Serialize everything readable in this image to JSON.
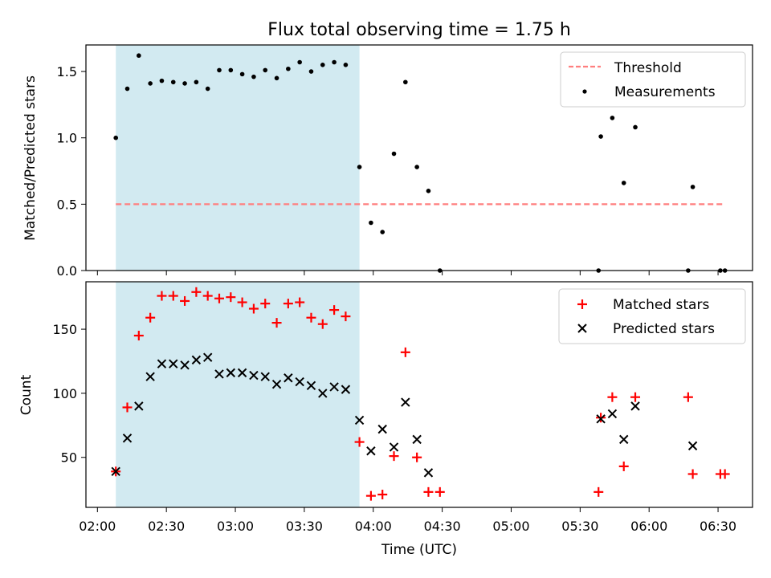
{
  "chart_data": {
    "title": "Flux total observing time = 1.75 h",
    "xlabel": "Time (UTC)",
    "x_ticks": [
      "02:00",
      "02:30",
      "03:00",
      "03:30",
      "04:00",
      "04:30",
      "05:00",
      "05:30",
      "06:00",
      "06:30"
    ],
    "xlim": [
      "01:55",
      "06:45"
    ],
    "highlight_span": [
      "02:08",
      "03:54"
    ],
    "colors": {
      "highlight": "#add8e6",
      "threshold": "#ff7f7f",
      "measurements": "#000000",
      "matched": "#ff0000",
      "predicted": "#000000"
    },
    "panels": [
      {
        "type": "scatter",
        "ylabel": "Matched/Predicted stars",
        "ylim": [
          0,
          1.7
        ],
        "y_ticks": [
          "0.0",
          "0.5",
          "1.0",
          "1.5"
        ],
        "legend_position": "top-right",
        "threshold": {
          "name": "Threshold",
          "value": 0.5,
          "x_range": [
            "02:08",
            "06:33"
          ]
        },
        "series": [
          {
            "name": "Measurements",
            "x": [
              "02:08",
              "02:13",
              "02:18",
              "02:23",
              "02:28",
              "02:33",
              "02:38",
              "02:43",
              "02:48",
              "02:53",
              "02:58",
              "03:03",
              "03:08",
              "03:13",
              "03:18",
              "03:23",
              "03:28",
              "03:33",
              "03:38",
              "03:43",
              "03:48",
              "03:54",
              "03:59",
              "04:04",
              "04:09",
              "04:14",
              "04:19",
              "04:24",
              "04:29",
              "05:38",
              "05:39",
              "05:44",
              "05:49",
              "05:54",
              "06:17",
              "06:19",
              "06:31",
              "06:33"
            ],
            "y": [
              1.0,
              1.37,
              1.62,
              1.41,
              1.43,
              1.42,
              1.41,
              1.42,
              1.37,
              1.51,
              1.51,
              1.48,
              1.46,
              1.51,
              1.45,
              1.52,
              1.57,
              1.5,
              1.55,
              1.57,
              1.55,
              0.78,
              0.36,
              0.29,
              0.88,
              1.42,
              0.78,
              0.6,
              0.0,
              0.0,
              1.01,
              1.15,
              0.66,
              1.08,
              0.0,
              0.63,
              0.0,
              0.0
            ]
          }
        ]
      },
      {
        "type": "scatter",
        "ylabel": "Count",
        "ylim": [
          11,
          187
        ],
        "y_ticks": [
          "50",
          "100",
          "150"
        ],
        "legend_position": "top-right",
        "series": [
          {
            "name": "Matched stars",
            "marker": "+",
            "x": [
              "02:08",
              "02:13",
              "02:18",
              "02:23",
              "02:28",
              "02:33",
              "02:38",
              "02:43",
              "02:48",
              "02:53",
              "02:58",
              "03:03",
              "03:08",
              "03:13",
              "03:18",
              "03:23",
              "03:28",
              "03:33",
              "03:38",
              "03:43",
              "03:48",
              "03:54",
              "03:59",
              "04:04",
              "04:09",
              "04:14",
              "04:19",
              "04:24",
              "04:29",
              "05:38",
              "05:39",
              "05:44",
              "05:49",
              "05:54",
              "06:17",
              "06:19",
              "06:31",
              "06:33"
            ],
            "y": [
              39,
              89,
              145,
              159,
              176,
              176,
              172,
              179,
              176,
              174,
              175,
              171,
              166,
              170,
              155,
              170,
              171,
              159,
              154,
              165,
              160,
              62,
              20,
              21,
              51,
              132,
              50,
              23,
              23,
              23,
              81,
              97,
              43,
              97,
              97,
              37,
              37,
              37
            ]
          },
          {
            "name": "Predicted stars",
            "marker": "x",
            "x": [
              "02:08",
              "02:13",
              "02:18",
              "02:23",
              "02:28",
              "02:33",
              "02:38",
              "02:43",
              "02:48",
              "02:53",
              "02:58",
              "03:03",
              "03:08",
              "03:13",
              "03:18",
              "03:23",
              "03:28",
              "03:33",
              "03:38",
              "03:43",
              "03:48",
              "03:54",
              "03:59",
              "04:04",
              "04:09",
              "04:14",
              "04:19",
              "04:24",
              "05:39",
              "05:44",
              "05:49",
              "05:54",
              "06:19"
            ],
            "y": [
              39,
              65,
              90,
              113,
              123,
              123,
              122,
              126,
              128,
              115,
              116,
              116,
              114,
              113,
              107,
              112,
              109,
              106,
              100,
              105,
              103,
              79,
              55,
              72,
              58,
              93,
              64,
              38,
              80,
              84,
              64,
              90,
              59
            ]
          }
        ]
      }
    ]
  }
}
